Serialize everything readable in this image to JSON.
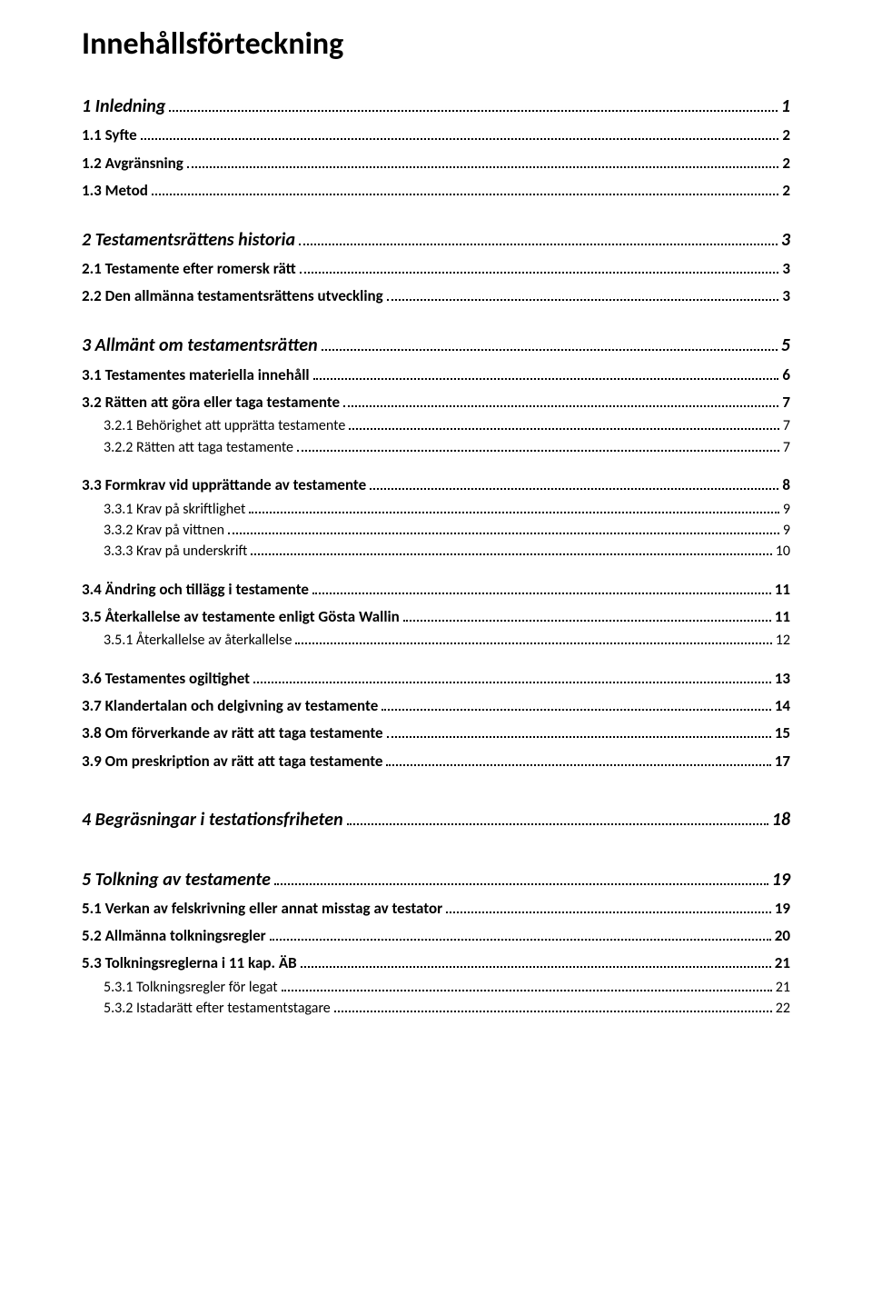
{
  "title": "Innehållsförteckning",
  "entries": [
    {
      "level": 1,
      "wide": false,
      "label": "1 Inledning",
      "page": "1"
    },
    {
      "level": 2,
      "label": "1.1 Syfte",
      "page": "2"
    },
    {
      "level": 2,
      "label": "1.2 Avgränsning",
      "page": "2"
    },
    {
      "level": 2,
      "label": "1.3 Metod",
      "page": "2"
    },
    {
      "level": 1,
      "wide": false,
      "label": "2 Testamentsrättens historia",
      "page": "3"
    },
    {
      "level": 2,
      "label": "2.1 Testamente efter romersk rätt",
      "page": "3"
    },
    {
      "level": 2,
      "label": "2.2 Den allmänna testamentsrättens utveckling",
      "page": "3"
    },
    {
      "level": 1,
      "wide": false,
      "label": "3 Allmänt om testamentsrätten",
      "page": "5"
    },
    {
      "level": 2,
      "label": "3.1 Testamentes materiella innehåll",
      "page": "6"
    },
    {
      "level": 2,
      "label": "3.2 Rätten att göra eller taga testamente",
      "page": "7"
    },
    {
      "level": 3,
      "label": "3.2.1 Behörighet att upprätta testamente",
      "page": "7"
    },
    {
      "level": 3,
      "label": "3.2.2 Rätten att taga testamente",
      "page": "7"
    },
    {
      "level": 2,
      "label": "3.3 Formkrav vid upprättande av testamente",
      "page": "8"
    },
    {
      "level": 3,
      "label": "3.3.1 Krav på skriftlighet",
      "page": "9"
    },
    {
      "level": 3,
      "label": "3.3.2 Krav på vittnen",
      "page": "9"
    },
    {
      "level": 3,
      "label": "3.3.3 Krav på underskrift",
      "page": "10"
    },
    {
      "level": 2,
      "label": "3.4 Ändring och tillägg i testamente",
      "page": "11"
    },
    {
      "level": 2,
      "label": "3.5 Återkallelse av testamente enligt Gösta Wallin",
      "page": "11"
    },
    {
      "level": 3,
      "label": "3.5.1 Återkallelse av återkallelse",
      "page": "12"
    },
    {
      "level": 2,
      "label": "3.6 Testamentes ogiltighet",
      "page": "13"
    },
    {
      "level": 2,
      "label": "3.7 Klandertalan och delgivning av testamente",
      "page": "14"
    },
    {
      "level": 2,
      "label": "3.8 Om förverkande av rätt att taga testamente",
      "page": "15"
    },
    {
      "level": 2,
      "label": "3.9 Om preskription av rätt att taga testamente",
      "page": "17"
    },
    {
      "level": 1,
      "wide": true,
      "label": "4 Begräsningar i testationsfriheten",
      "page": "18"
    },
    {
      "level": 1,
      "wide": true,
      "label": "5 Tolkning av testamente",
      "page": "19"
    },
    {
      "level": 2,
      "label": "5.1 Verkan av felskrivning eller annat misstag av testator",
      "page": "19"
    },
    {
      "level": 2,
      "label": "5.2 Allmänna tolkningsregler",
      "page": "20"
    },
    {
      "level": 2,
      "label": "5.3 Tolkningsreglerna i 11 kap. ÄB",
      "page": "21"
    },
    {
      "level": 3,
      "label": "5.3.1 Tolkningsregler för legat",
      "page": "21"
    },
    {
      "level": 3,
      "label": "5.3.2 Istadarätt efter testamentstagare",
      "page": "22"
    }
  ]
}
